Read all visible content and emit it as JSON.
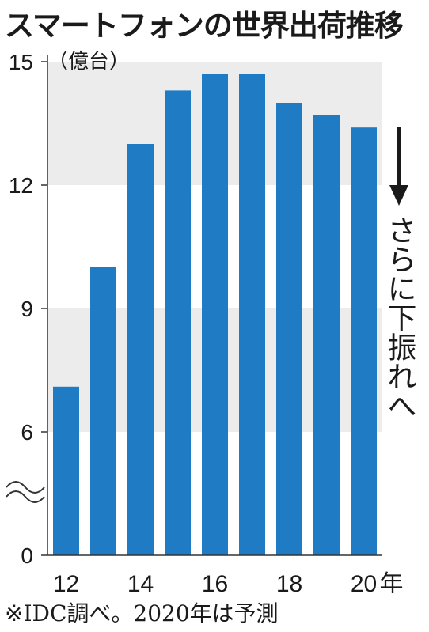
{
  "title": "スマートフォンの世界出荷推移",
  "note": "※IDC調べ。2020年は予測",
  "annotation": "さらに下振れへ",
  "chart_data": {
    "type": "bar",
    "title": "スマートフォンの世界出荷推移",
    "unit": "（億台）",
    "x_suffix": "年",
    "x": [
      2012,
      2013,
      2014,
      2015,
      2016,
      2017,
      2018,
      2019,
      2020
    ],
    "x_tick_labels": [
      "12",
      "14",
      "16",
      "18",
      "20"
    ],
    "values": [
      7.1,
      10.0,
      13.0,
      14.3,
      14.7,
      14.7,
      14.0,
      13.7,
      13.4
    ],
    "y_ticks": [
      0,
      6,
      9,
      12,
      15
    ],
    "ylim": [
      0,
      15
    ],
    "axis_break": true,
    "bar_color": "#1f7bc4",
    "band_color": "#ececec",
    "grid": false,
    "legend": "none"
  }
}
